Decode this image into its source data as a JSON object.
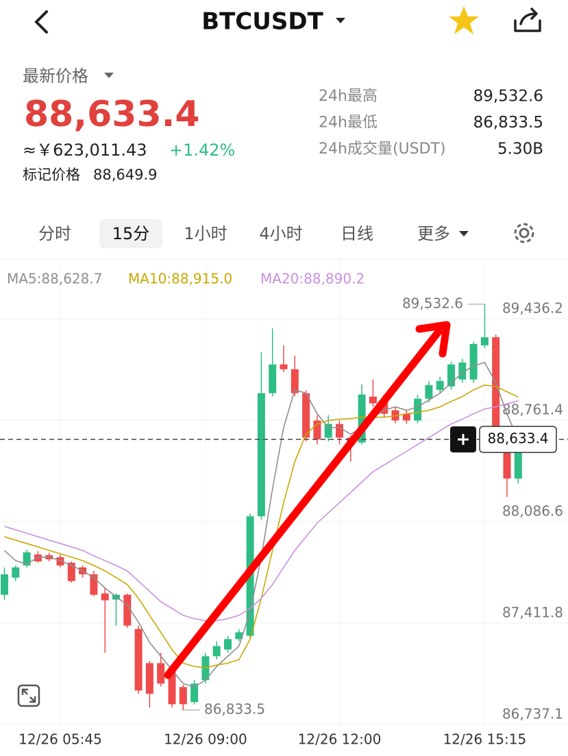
{
  "header": {
    "title": "BTCUSDT"
  },
  "price": {
    "label": "最新价格",
    "last": "88,633.4",
    "cny": "≈￥623,011.43",
    "change": "+1.42%",
    "mark_label": "标记价格",
    "mark": "88,649.9"
  },
  "stats": [
    {
      "label": "24h最高",
      "value": "89,532.6"
    },
    {
      "label": "24h最低",
      "value": "86,833.5"
    },
    {
      "label": "24h成交量(USDT)",
      "value": "5.30B"
    }
  ],
  "tabs": [
    "分时",
    "15分",
    "1小时",
    "4小时",
    "日线",
    "更多"
  ],
  "active_tab": 1,
  "chart_data": {
    "type": "candlestick",
    "categories": [
      null,
      null,
      null,
      null,
      null,
      "12/26 05:45",
      null,
      null,
      null,
      null,
      null,
      null,
      null,
      null,
      null,
      null,
      null,
      null,
      "12/26 09:00",
      null,
      null,
      null,
      null,
      null,
      null,
      null,
      null,
      null,
      null,
      null,
      "12/26 12:00",
      null,
      null,
      null,
      null,
      null,
      null,
      null,
      null,
      null,
      null,
      null,
      null,
      "12/26 15:15",
      null,
      null,
      null
    ],
    "open": [
      87600,
      87714,
      87795,
      87868,
      87863,
      87850,
      87813,
      87782,
      87736,
      87609,
      87568,
      87600,
      87372,
      87145,
      87145,
      87100,
      86986,
      86886,
      87032,
      87191,
      87236,
      87305,
      87327,
      88122,
      88941,
      89132,
      89100,
      88941,
      88759,
      88645,
      88736,
      88645,
      88613,
      88918,
      88895,
      88827,
      88804,
      88759,
      88904,
      88963,
      88986,
      89032,
      89032,
      89259,
      89313,
      88704,
      88373
    ],
    "high": [
      87782,
      87795,
      87900,
      87890,
      87880,
      87868,
      87822,
      87795,
      87760,
      87650,
      87609,
      87609,
      87395,
      87160,
      87214,
      87120,
      87000,
      87032,
      87214,
      87290,
      87327,
      87372,
      88140,
      89213,
      89372,
      89259,
      89191,
      88960,
      88795,
      88795,
      88760,
      88660,
      89000,
      89032,
      88918,
      88850,
      88827,
      88930,
      89022,
      89050,
      89150,
      89170,
      89282,
      89532.6,
      89330,
      88720,
      88660
    ],
    "low": [
      87568,
      87691,
      87782,
      87813,
      87822,
      87782,
      87680,
      87714,
      87590,
      87214,
      87395,
      87380,
      86941,
      86850,
      86990,
      86850,
      86833.5,
      86870,
      87009,
      87170,
      87214,
      87290,
      87305,
      88100,
      88920,
      89080,
      88920,
      88620,
      88600,
      88620,
      88600,
      88486,
      88600,
      88850,
      88780,
      88740,
      88736,
      88740,
      88880,
      88940,
      88963,
      89010,
      89010,
      89240,
      88680,
      88250,
      88340
    ],
    "close": [
      87736,
      87782,
      87882,
      87822,
      87836,
      87795,
      87691,
      87736,
      87600,
      87563,
      87600,
      87395,
      86963,
      86941,
      87009,
      86872,
      86872,
      87009,
      87191,
      87259,
      87305,
      87350,
      88122,
      88941,
      89132,
      89100,
      88941,
      88645,
      88633,
      88736,
      88645,
      88600,
      88932,
      88873,
      88804,
      88759,
      88759,
      88904,
      88995,
      89022,
      89132,
      89145,
      89268,
      89313,
      88704,
      88373,
      88633.4
    ],
    "up_color": "#2ebd85",
    "down_color": "#ef4b4b",
    "series": [
      {
        "name": "MA5:88,628.7",
        "color": "#8e8e8e",
        "values": [
          87895,
          87827,
          87804,
          87850,
          87850,
          87827,
          87795,
          87759,
          87714,
          87645,
          87586,
          87532,
          87418,
          87282,
          87191,
          87100,
          87009,
          86986,
          87032,
          87123,
          87191,
          87259,
          87486,
          87850,
          88304,
          88713,
          88963,
          88941,
          88804,
          88713,
          88713,
          88668,
          88713,
          88781,
          88827,
          88850,
          88827,
          88850,
          88895,
          88941,
          89009,
          89077,
          89122,
          89145,
          89009,
          88804,
          88628.7
        ]
      },
      {
        "name": "MA10:88,915.0",
        "color": "#c9a800",
        "values": [
          87986,
          87963,
          87941,
          87918,
          87895,
          87873,
          87850,
          87827,
          87795,
          87759,
          87714,
          87668,
          87577,
          87463,
          87350,
          87236,
          87145,
          87123,
          87114,
          87132,
          87145,
          87168,
          87305,
          87577,
          87895,
          88213,
          88486,
          88668,
          88736,
          88759,
          88768,
          88772,
          88781,
          88781,
          88781,
          88790,
          88804,
          88813,
          88827,
          88850,
          88886,
          88918,
          88963,
          88995,
          88986,
          88950,
          88915.0
        ]
      },
      {
        "name": "MA20:88,890.2",
        "color": "#c98fe0",
        "values": [
          88054,
          88032,
          88009,
          87986,
          87963,
          87941,
          87918,
          87895,
          87859,
          87827,
          87795,
          87759,
          87691,
          87623,
          87554,
          87509,
          87463,
          87441,
          87427,
          87427,
          87441,
          87463,
          87509,
          87577,
          87668,
          87782,
          87895,
          87986,
          88077,
          88145,
          88213,
          88281,
          88350,
          88418,
          88463,
          88509,
          88554,
          88600,
          88645,
          88691,
          88736,
          88768,
          88804,
          88836,
          88850,
          88870,
          88890.2
        ]
      }
    ],
    "ylim": [
      86723.4,
      89832.9
    ],
    "yticks": [
      {
        "value": 86737.1,
        "label": "86,737.1"
      },
      {
        "value": 87411.8,
        "label": "87,411.8"
      },
      {
        "value": 88086.6,
        "label": "88,086.6"
      },
      {
        "value": 88761.4,
        "label": "88,761.4"
      },
      {
        "value": 89436.2,
        "label": "89,436.2"
      }
    ],
    "grid": true,
    "high_label": {
      "value": 89532.6,
      "label": "89,532.6"
    },
    "low_label": {
      "value": 86833.5,
      "label": "86,833.5"
    },
    "last_label": {
      "value": 88633.4,
      "label": "88,633.4"
    }
  }
}
